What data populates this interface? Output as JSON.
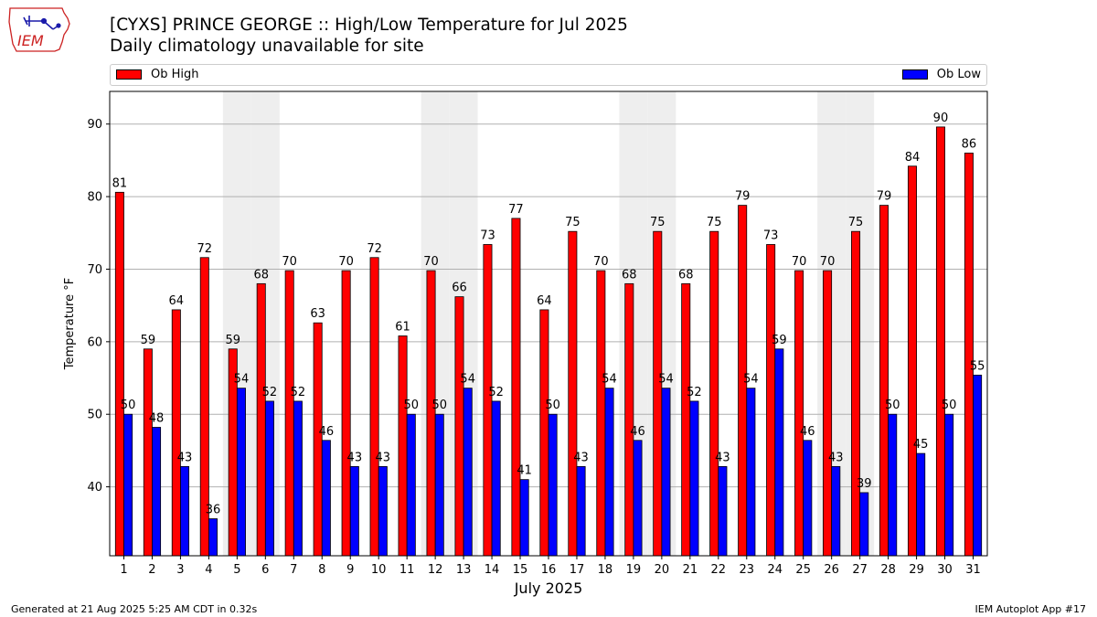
{
  "header": {
    "title": "[CYXS] PRINCE GEORGE :: High/Low Temperature for Jul 2025",
    "subtitle": "Daily climatology unavailable for site",
    "logo_text": "IEM"
  },
  "colors": {
    "high": "#ff0000",
    "low": "#0000ff",
    "weekend_band": "#eeeeee",
    "grid": "#b0b0b0"
  },
  "footer": {
    "generated": "Generated at 21 Aug 2025 5:25 AM CDT in 0.32s",
    "app": "IEM Autoplot App #17"
  },
  "chart_data": {
    "type": "bar",
    "title": "[CYXS] PRINCE GEORGE :: High/Low Temperature for Jul 2025",
    "subtitle": "Daily climatology unavailable for site",
    "xlabel": "July 2025",
    "ylabel": "Temperature °F",
    "ylim": [
      30.5,
      94.5
    ],
    "yticks": [
      40,
      50,
      60,
      70,
      80,
      90
    ],
    "grid": "horizontal",
    "legend_position": "top",
    "categories": [
      "1",
      "2",
      "3",
      "4",
      "5",
      "6",
      "7",
      "8",
      "9",
      "10",
      "11",
      "12",
      "13",
      "14",
      "15",
      "16",
      "17",
      "18",
      "19",
      "20",
      "21",
      "22",
      "23",
      "24",
      "25",
      "26",
      "27",
      "28",
      "29",
      "30",
      "31"
    ],
    "weekend_days": [
      5,
      6,
      12,
      13,
      19,
      20,
      26,
      27
    ],
    "series": [
      {
        "name": "Ob High",
        "color": "#ff0000",
        "values": [
          81,
          59,
          64,
          72,
          59,
          68,
          70,
          63,
          70,
          72,
          61,
          70,
          66,
          73,
          77,
          64,
          75,
          70,
          68,
          75,
          68,
          75,
          79,
          73,
          70,
          70,
          75,
          79,
          84,
          90,
          86
        ],
        "plotted": [
          80.6,
          59.0,
          64.4,
          71.6,
          59.0,
          68.0,
          69.8,
          62.6,
          69.8,
          71.6,
          60.8,
          69.8,
          66.2,
          73.4,
          77.0,
          64.4,
          75.2,
          69.8,
          68.0,
          75.2,
          68.0,
          75.2,
          78.8,
          73.4,
          69.8,
          69.8,
          75.2,
          78.8,
          84.2,
          89.6,
          86.0
        ]
      },
      {
        "name": "Ob Low",
        "color": "#0000ff",
        "values": [
          50,
          48,
          43,
          36,
          54,
          52,
          52,
          46,
          43,
          43,
          50,
          50,
          54,
          52,
          41,
          50,
          43,
          54,
          46,
          54,
          52,
          43,
          54,
          59,
          46,
          43,
          39,
          50,
          45,
          50,
          55
        ],
        "plotted": [
          50.0,
          48.2,
          42.8,
          35.6,
          53.6,
          51.8,
          51.8,
          46.4,
          42.8,
          42.8,
          50.0,
          50.0,
          53.6,
          51.8,
          41.0,
          50.0,
          42.8,
          53.6,
          46.4,
          53.6,
          51.8,
          42.8,
          53.6,
          59.0,
          46.4,
          42.8,
          39.2,
          50.0,
          44.6,
          50.0,
          55.4
        ]
      }
    ]
  }
}
